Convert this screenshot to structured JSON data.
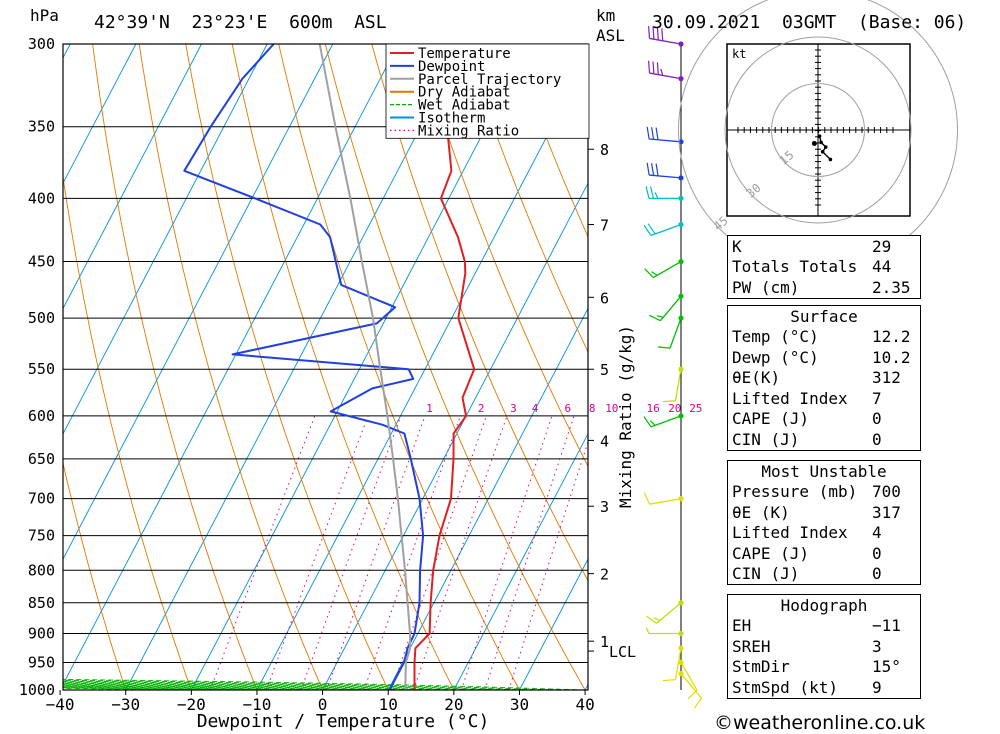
{
  "header": {
    "hpa_unit": "hPa",
    "location": "42°39'N  23°23'E  600m  ASL",
    "km_label": "km",
    "asl_label": "ASL",
    "datetime": "30.09.2021  03GMT  (Base: 06)"
  },
  "chart_data": {
    "type": "skew-t",
    "title": "42°39'N 23°23'E 600m ASL",
    "xlabel": "Dewpoint / Temperature (°C)",
    "ylabel": "hPa",
    "mixing_ratio_axis_label": "Mixing Ratio (g/kg)",
    "x_ticks": [
      -40,
      -30,
      -20,
      -10,
      0,
      10,
      20,
      30,
      40
    ],
    "x_tick_labels": [
      "−40",
      "−30",
      "−20",
      "−10",
      "0",
      "10",
      "20",
      "30",
      "40"
    ],
    "pressure_levels": [
      300,
      350,
      400,
      450,
      500,
      550,
      600,
      650,
      700,
      750,
      800,
      850,
      900,
      950,
      1000
    ],
    "pressure_range": [
      300,
      1000
    ],
    "km_ticks": [
      {
        "km": 8,
        "p": 365
      },
      {
        "km": 7,
        "p": 420
      },
      {
        "km": 6,
        "p": 481
      },
      {
        "km": 5,
        "p": 550
      },
      {
        "km": 4,
        "p": 628
      },
      {
        "km": 3,
        "p": 710
      },
      {
        "km": 2,
        "p": 805
      },
      {
        "km": 1,
        "p": 913
      }
    ],
    "lcl": {
      "label": "LCL",
      "p": 930
    },
    "mixing_ratio_labels": [
      {
        "label": "1",
        "t": -5.6
      },
      {
        "label": "2",
        "t": 2.3
      },
      {
        "label": "3",
        "t": 7.2
      },
      {
        "label": "4",
        "t": 10.5
      },
      {
        "label": "6",
        "t": 15.5
      },
      {
        "label": "8",
        "t": 19.2
      },
      {
        "label": "10",
        "t": 22.2
      },
      {
        "label": "16",
        "t": 28.5
      },
      {
        "label": "20",
        "t": 31.8
      },
      {
        "label": "25",
        "t": 35.0
      }
    ],
    "legend": {
      "position": "top-right of plot",
      "entries": [
        {
          "label": "Temperature",
          "color": "#e02020",
          "style": "solid"
        },
        {
          "label": "Dewpoint",
          "color": "#2040e0",
          "style": "solid"
        },
        {
          "label": "Parcel Trajectory",
          "color": "#a0a0a0",
          "style": "solid"
        },
        {
          "label": "Dry Adiabat",
          "color": "#e07800",
          "style": "solid"
        },
        {
          "label": "Wet Adiabat",
          "color": "#00b000",
          "style": "dashed"
        },
        {
          "label": "Isotherm",
          "color": "#0090e0",
          "style": "solid"
        },
        {
          "label": "Mixing Ratio",
          "color": "#e00080",
          "style": "dotted"
        }
      ]
    },
    "series": [
      {
        "name": "Temperature",
        "color": "#e02020",
        "points": [
          [
            1000,
            14.0
          ],
          [
            950,
            11.8
          ],
          [
            925,
            10.8
          ],
          [
            900,
            11.8
          ],
          [
            850,
            9.5
          ],
          [
            800,
            7.3
          ],
          [
            750,
            5.5
          ],
          [
            700,
            4.3
          ],
          [
            650,
            1.5
          ],
          [
            620,
            -0.5
          ],
          [
            600,
            0.0
          ],
          [
            580,
            -2.0
          ],
          [
            550,
            -2.5
          ],
          [
            500,
            -9.0
          ],
          [
            460,
            -11.5
          ],
          [
            450,
            -12.5
          ],
          [
            430,
            -15.5
          ],
          [
            400,
            -21.2
          ],
          [
            380,
            -21.8
          ],
          [
            350,
            -26.0
          ],
          [
            320,
            -30.5
          ],
          [
            300,
            -35.0
          ]
        ]
      },
      {
        "name": "Dewpoint",
        "color": "#2040e0",
        "points": [
          [
            1000,
            10.2
          ],
          [
            950,
            10.2
          ],
          [
            925,
            9.6
          ],
          [
            900,
            9.5
          ],
          [
            850,
            7.8
          ],
          [
            800,
            5.3
          ],
          [
            750,
            3.0
          ],
          [
            700,
            -0.5
          ],
          [
            650,
            -5.0
          ],
          [
            620,
            -8.0
          ],
          [
            610,
            -12.0
          ],
          [
            595,
            -21.0
          ],
          [
            570,
            -16.5
          ],
          [
            560,
            -11.0
          ],
          [
            550,
            -12.5
          ],
          [
            535,
            -40.5
          ],
          [
            505,
            -21.0
          ],
          [
            490,
            -19.5
          ],
          [
            470,
            -29.5
          ],
          [
            430,
            -35.0
          ],
          [
            420,
            -37.5
          ],
          [
            400,
            -49.5
          ],
          [
            380,
            -62.5
          ],
          [
            350,
            -62.0
          ],
          [
            320,
            -61.0
          ],
          [
            300,
            -59.0
          ]
        ]
      },
      {
        "name": "Parcel Trajectory",
        "color": "#a0a0a0",
        "points": [
          [
            1000,
            12.6
          ],
          [
            950,
            10.5
          ],
          [
            925,
            10.0
          ],
          [
            900,
            8.8
          ],
          [
            850,
            6.0
          ],
          [
            800,
            3.0
          ],
          [
            750,
            -0.3
          ],
          [
            700,
            -3.8
          ],
          [
            650,
            -7.7
          ],
          [
            600,
            -12.0
          ],
          [
            550,
            -16.8
          ],
          [
            500,
            -22.0
          ],
          [
            450,
            -28.2
          ],
          [
            400,
            -35.0
          ],
          [
            350,
            -43.0
          ],
          [
            300,
            -52.0
          ]
        ]
      }
    ],
    "hodograph": {
      "unit": "kt",
      "rings": [
        15,
        30,
        45
      ],
      "ring_labels": [
        "15",
        "30",
        "45"
      ],
      "trace": [
        [
          0.5,
          -2.0
        ],
        [
          1.0,
          -4.0
        ],
        [
          2.5,
          -5.5
        ],
        [
          1.5,
          -7.0
        ],
        [
          4.0,
          -9.5
        ]
      ],
      "storm_motion": {
        "dir_deg": 15,
        "speed_kt": 9
      }
    },
    "wind_profile": [
      {
        "p": 300,
        "dir": 280,
        "spd": 40,
        "color": "#8020c0"
      },
      {
        "p": 320,
        "dir": 280,
        "spd": 35,
        "color": "#8020c0"
      },
      {
        "p": 360,
        "dir": 275,
        "spd": 30,
        "color": "#2040e0"
      },
      {
        "p": 385,
        "dir": 275,
        "spd": 30,
        "color": "#2040e0"
      },
      {
        "p": 400,
        "dir": 270,
        "spd": 25,
        "color": "#00c0c0"
      },
      {
        "p": 420,
        "dir": 250,
        "spd": 20,
        "color": "#00c0c0"
      },
      {
        "p": 450,
        "dir": 240,
        "spd": 15,
        "color": "#00c000"
      },
      {
        "p": 480,
        "dir": 220,
        "spd": 15,
        "color": "#00c000"
      },
      {
        "p": 500,
        "dir": 200,
        "spd": 10,
        "color": "#00c000"
      },
      {
        "p": 550,
        "dir": 190,
        "spd": 10,
        "color": "#c0e000"
      },
      {
        "p": 600,
        "dir": 250,
        "spd": 15,
        "color": "#00c000"
      },
      {
        "p": 700,
        "dir": 260,
        "spd": 10,
        "color": "#e0e000"
      },
      {
        "p": 850,
        "dir": 230,
        "spd": 15,
        "color": "#c0e000"
      },
      {
        "p": 900,
        "dir": 270,
        "spd": 5,
        "color": "#c0e000"
      },
      {
        "p": 925,
        "dir": 190,
        "spd": 10,
        "color": "#e0e000"
      },
      {
        "p": 950,
        "dir": 150,
        "spd": 10,
        "color": "#e0e000"
      },
      {
        "p": 970,
        "dir": 140,
        "spd": 10,
        "color": "#e0e000"
      }
    ]
  },
  "indices": {
    "k": {
      "label": "K",
      "value": "29"
    },
    "totals": {
      "label": "Totals Totals",
      "value": "44"
    },
    "pw": {
      "label": "PW (cm)",
      "value": "2.35"
    }
  },
  "surface": {
    "title": "Surface",
    "temp": {
      "label": "Temp (°C)",
      "value": "12.2"
    },
    "dewp": {
      "label": "Dewp (°C)",
      "value": "10.2"
    },
    "theta_e": {
      "label": "θE(K)",
      "value": "312"
    },
    "lifted_index": {
      "label": "Lifted Index",
      "value": "7"
    },
    "cape": {
      "label": "CAPE (J)",
      "value": "0"
    },
    "cin": {
      "label": "CIN (J)",
      "value": "0"
    }
  },
  "most_unstable": {
    "title": "Most Unstable",
    "pressure": {
      "label": "Pressure (mb)",
      "value": "700"
    },
    "theta_e": {
      "label": "θE (K)",
      "value": "317"
    },
    "lifted_index": {
      "label": "Lifted Index",
      "value": "4"
    },
    "cape": {
      "label": "CAPE (J)",
      "value": "0"
    },
    "cin": {
      "label": "CIN (J)",
      "value": "0"
    }
  },
  "hodograph_params": {
    "title": "Hodograph",
    "eh": {
      "label": "EH",
      "value": "−11"
    },
    "sreh": {
      "label": "SREH",
      "value": "3"
    },
    "stmdir": {
      "label": "StmDir",
      "value": "15°"
    },
    "stmspd": {
      "label": "StmSpd (kt)",
      "value": "9"
    }
  },
  "footer": {
    "credit": "©weatheronline.co.uk"
  }
}
